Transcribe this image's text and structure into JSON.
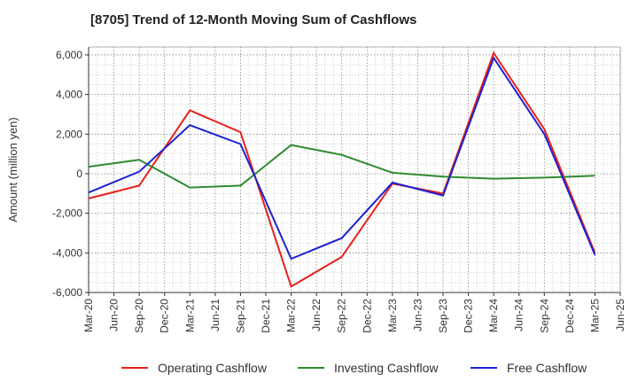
{
  "chart_data": {
    "type": "line",
    "title": "[8705]  Trend of 12-Month Moving Sum of Cashflows",
    "xlabel": "",
    "ylabel": "Amount (million yen)",
    "ylim": [
      -6000,
      6400
    ],
    "yticks": [
      6000,
      4000,
      2000,
      0,
      -2000,
      -4000,
      -6000
    ],
    "ytick_labels": [
      "6,000",
      "4,000",
      "2,000",
      "0",
      "-2,000",
      "-4,000",
      "-6,000"
    ],
    "x_labels": [
      "Mar-20",
      "Jun-20",
      "Sep-20",
      "Dec-20",
      "Mar-21",
      "Jun-21",
      "Sep-21",
      "Dec-21",
      "Mar-22",
      "Jun-22",
      "Sep-22",
      "Dec-22",
      "Mar-23",
      "Jun-23",
      "Sep-23",
      "Dec-23",
      "Mar-24",
      "Jun-24",
      "Sep-24",
      "Dec-24",
      "Mar-25",
      "Jun-25"
    ],
    "grid": true,
    "legend_position": "bottom",
    "series": [
      {
        "name": "Operating Cashflow",
        "color": "#e8201c",
        "points": [
          [
            "Mar-20",
            -1250
          ],
          [
            "Sep-20",
            -600
          ],
          [
            "Mar-21",
            3200
          ],
          [
            "Sep-21",
            2100
          ],
          [
            "Mar-22",
            -5700
          ],
          [
            "Sep-22",
            -4200
          ],
          [
            "Mar-23",
            -500
          ],
          [
            "Sep-23",
            -1000
          ],
          [
            "Mar-24",
            6100
          ],
          [
            "Sep-24",
            2250
          ],
          [
            "Mar-25",
            -4000
          ]
        ]
      },
      {
        "name": "Investing Cashflow",
        "color": "#2e8b2e",
        "points": [
          [
            "Mar-20",
            350
          ],
          [
            "Sep-20",
            700
          ],
          [
            "Mar-21",
            -700
          ],
          [
            "Sep-21",
            -600
          ],
          [
            "Mar-22",
            1450
          ],
          [
            "Sep-22",
            950
          ],
          [
            "Mar-23",
            50
          ],
          [
            "Sep-23",
            -150
          ],
          [
            "Mar-24",
            -250
          ],
          [
            "Sep-24",
            -200
          ],
          [
            "Mar-25",
            -100
          ]
        ]
      },
      {
        "name": "Free Cashflow",
        "color": "#1c22d0",
        "points": [
          [
            "Mar-20",
            -950
          ],
          [
            "Sep-20",
            100
          ],
          [
            "Mar-21",
            2450
          ],
          [
            "Sep-21",
            1500
          ],
          [
            "Mar-22",
            -4300
          ],
          [
            "Sep-22",
            -3250
          ],
          [
            "Mar-23",
            -450
          ],
          [
            "Sep-23",
            -1100
          ],
          [
            "Mar-24",
            5850
          ],
          [
            "Sep-24",
            2000
          ],
          [
            "Mar-25",
            -4100
          ]
        ]
      }
    ]
  }
}
